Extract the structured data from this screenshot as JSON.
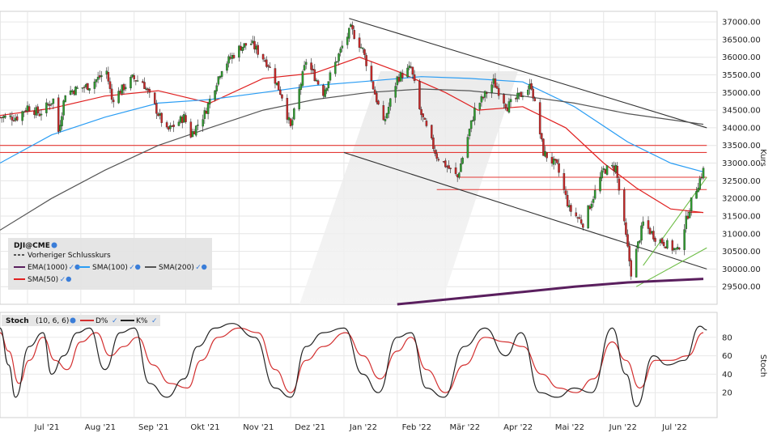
{
  "chart_data": [
    {
      "type": "candlestick",
      "legend": {
        "symbol": "DJI@CME",
        "entries": [
          {
            "name": "Vorheriger Schlusskurs",
            "color": "#555555",
            "style": "dashed"
          },
          {
            "name": "EMA(1000)",
            "color": "#5a1f5e"
          },
          {
            "name": "SMA(100)",
            "color": "#2a9df4"
          },
          {
            "name": "SMA(200)",
            "color": "#555555"
          },
          {
            "name": "SMA(50)",
            "color": "#e02020"
          }
        ]
      },
      "ylabel": "Kurs",
      "ylim": [
        29000,
        37300
      ],
      "yticks": [
        "37000.00",
        "36500.00",
        "36000.00",
        "35500.00",
        "35000.00",
        "34500.00",
        "34000.00",
        "33500.00",
        "33000.00",
        "32500.00",
        "32000.00",
        "31500.00",
        "31000.00",
        "30500.00",
        "30000.00",
        "29500.00"
      ],
      "xticks": [
        "Jul '21",
        "Aug '21",
        "Sep '21",
        "Okt '21",
        "Nov '21",
        "Dez '21",
        "Jan '22",
        "Feb '22",
        "Mär '22",
        "Apr '22",
        "Mai '22",
        "Jun '22",
        "Jul '22"
      ],
      "xtick_dates": [
        "2021-07-01",
        "2021-08-01",
        "2021-09-01",
        "2021-10-01",
        "2021-11-01",
        "2021-12-01",
        "2022-01-01",
        "2022-02-01",
        "2022-03-01",
        "2022-04-01",
        "2022-05-01",
        "2022-06-01",
        "2022-07-01"
      ],
      "colors": {
        "up": "#2e9b2e",
        "down": "#c62828",
        "resistance": "#e53935",
        "support": "#6dbd45",
        "channel": "#333333"
      },
      "closes": [
        [
          "2021-06-15",
          34300
        ],
        [
          "2021-06-25",
          34300
        ],
        [
          "2021-07-01",
          34600
        ],
        [
          "2021-07-08",
          34400
        ],
        [
          "2021-07-16",
          34800
        ],
        [
          "2021-07-19",
          33900
        ],
        [
          "2021-07-23",
          35000
        ],
        [
          "2021-08-06",
          35200
        ],
        [
          "2021-08-16",
          35600
        ],
        [
          "2021-08-19",
          34800
        ],
        [
          "2021-08-31",
          35400
        ],
        [
          "2021-09-06",
          35300
        ],
        [
          "2021-09-20",
          33900
        ],
        [
          "2021-09-30",
          34300
        ],
        [
          "2021-10-04",
          33800
        ],
        [
          "2021-10-12",
          34400
        ],
        [
          "2021-10-22",
          35700
        ],
        [
          "2021-11-02",
          36300
        ],
        [
          "2021-11-08",
          36400
        ],
        [
          "2021-11-18",
          35800
        ],
        [
          "2021-11-26",
          34900
        ],
        [
          "2021-12-01",
          34000
        ],
        [
          "2021-12-10",
          35900
        ],
        [
          "2021-12-20",
          35000
        ],
        [
          "2021-12-31",
          36300
        ],
        [
          "2022-01-05",
          36800
        ],
        [
          "2022-01-12",
          36200
        ],
        [
          "2022-01-24",
          34100
        ],
        [
          "2022-02-01",
          35400
        ],
        [
          "2022-02-09",
          35700
        ],
        [
          "2022-02-14",
          34500
        ],
        [
          "2022-02-24",
          33200
        ],
        [
          "2022-03-08",
          32600
        ],
        [
          "2022-03-18",
          34500
        ],
        [
          "2022-03-29",
          35300
        ],
        [
          "2022-04-06",
          34600
        ],
        [
          "2022-04-20",
          35200
        ],
        [
          "2022-04-27",
          33300
        ],
        [
          "2022-05-05",
          32900
        ],
        [
          "2022-05-12",
          31700
        ],
        [
          "2022-05-20",
          31300
        ],
        [
          "2022-06-01",
          32800
        ],
        [
          "2022-06-08",
          32900
        ],
        [
          "2022-06-17",
          29900
        ],
        [
          "2022-06-24",
          31300
        ],
        [
          "2022-07-01",
          30900
        ],
        [
          "2022-07-14",
          30500
        ],
        [
          "2022-07-22",
          31900
        ],
        [
          "2022-07-29",
          32800
        ]
      ],
      "series": [
        {
          "name": "SMA(50)",
          "values": [
            [
              "2021-06-15",
              34350
            ],
            [
              "2021-07-15",
              34550
            ],
            [
              "2021-08-15",
              34900
            ],
            [
              "2021-09-15",
              35050
            ],
            [
              "2021-10-15",
              34700
            ],
            [
              "2021-11-15",
              35400
            ],
            [
              "2021-12-15",
              35550
            ],
            [
              "2022-01-10",
              36000
            ],
            [
              "2022-02-01",
              35600
            ],
            [
              "2022-03-01",
              35000
            ],
            [
              "2022-03-20",
              34500
            ],
            [
              "2022-04-15",
              34600
            ],
            [
              "2022-05-10",
              34000
            ],
            [
              "2022-06-01",
              33000
            ],
            [
              "2022-06-20",
              32300
            ],
            [
              "2022-07-10",
              31700
            ],
            [
              "2022-07-29",
              31600
            ]
          ]
        },
        {
          "name": "SMA(100)",
          "values": [
            [
              "2021-06-15",
              33000
            ],
            [
              "2021-07-15",
              33800
            ],
            [
              "2021-08-15",
              34300
            ],
            [
              "2021-09-15",
              34700
            ],
            [
              "2021-10-15",
              34800
            ],
            [
              "2021-11-15",
              35000
            ],
            [
              "2021-12-15",
              35200
            ],
            [
              "2022-01-10",
              35300
            ],
            [
              "2022-02-15",
              35450
            ],
            [
              "2022-03-15",
              35400
            ],
            [
              "2022-04-15",
              35300
            ],
            [
              "2022-05-15",
              34600
            ],
            [
              "2022-06-15",
              33600
            ],
            [
              "2022-07-10",
              33000
            ],
            [
              "2022-07-29",
              32750
            ]
          ]
        },
        {
          "name": "SMA(200)",
          "values": [
            [
              "2021-06-15",
              31100
            ],
            [
              "2021-07-15",
              32000
            ],
            [
              "2021-08-15",
              32800
            ],
            [
              "2021-09-15",
              33500
            ],
            [
              "2021-10-15",
              34000
            ],
            [
              "2021-11-15",
              34500
            ],
            [
              "2021-12-15",
              34800
            ],
            [
              "2022-01-15",
              35000
            ],
            [
              "2022-02-15",
              35100
            ],
            [
              "2022-03-15",
              35050
            ],
            [
              "2022-04-15",
              34900
            ],
            [
              "2022-05-15",
              34700
            ],
            [
              "2022-06-15",
              34400
            ],
            [
              "2022-07-29",
              34100
            ]
          ]
        },
        {
          "name": "EMA(1000)",
          "values": [
            [
              "2022-02-01",
              29000
            ],
            [
              "2022-03-15",
              29200
            ],
            [
              "2022-04-15",
              29350
            ],
            [
              "2022-05-15",
              29500
            ],
            [
              "2022-06-15",
              29620
            ],
            [
              "2022-07-29",
              29720
            ]
          ]
        }
      ],
      "trendlines": {
        "channel_upper": [
          [
            "2022-01-04",
            37100
          ],
          [
            "2022-07-31",
            34000
          ]
        ],
        "channel_lower": [
          [
            "2022-01-01",
            33300
          ],
          [
            "2022-07-31",
            30000
          ]
        ],
        "support_upper": [
          [
            "2022-06-24",
            30100
          ],
          [
            "2022-07-31",
            32600
          ]
        ],
        "support_lower": [
          [
            "2022-06-20",
            29500
          ],
          [
            "2022-07-31",
            30600
          ]
        ],
        "resistance": [
          {
            "y": 33500,
            "from": "2021-06-15",
            "to": "2022-07-31"
          },
          {
            "y": 33300,
            "from": "2021-06-15",
            "to": "2022-07-31"
          },
          {
            "y": 32600,
            "from": "2022-03-08",
            "to": "2022-07-31"
          },
          {
            "y": 32250,
            "from": "2022-02-24",
            "to": "2022-07-31"
          },
          {
            "y": 31600,
            "from": "2022-07-20",
            "to": "2022-07-29"
          }
        ]
      }
    },
    {
      "type": "line",
      "title": "Stoch",
      "params": "(10, 6, 6)",
      "ylabel": "Stoch",
      "ylim": [
        0,
        100
      ],
      "yticks": [
        "80",
        "60",
        "40",
        "20"
      ],
      "series": [
        {
          "name": "D%",
          "color": "#d32f2f",
          "values": [
            [
              "2021-06-15",
              85
            ],
            [
              "2021-06-20",
              65
            ],
            [
              "2021-06-26",
              30
            ],
            [
              "2021-07-02",
              55
            ],
            [
              "2021-07-10",
              80
            ],
            [
              "2021-07-17",
              55
            ],
            [
              "2021-07-24",
              45
            ],
            [
              "2021-08-01",
              75
            ],
            [
              "2021-08-10",
              85
            ],
            [
              "2021-08-18",
              60
            ],
            [
              "2021-08-26",
              70
            ],
            [
              "2021-09-03",
              80
            ],
            [
              "2021-09-12",
              50
            ],
            [
              "2021-09-22",
              30
            ],
            [
              "2021-10-02",
              25
            ],
            [
              "2021-10-10",
              55
            ],
            [
              "2021-10-20",
              80
            ],
            [
              "2021-11-01",
              90
            ],
            [
              "2021-11-12",
              85
            ],
            [
              "2021-11-22",
              45
            ],
            [
              "2021-12-01",
              20
            ],
            [
              "2021-12-10",
              55
            ],
            [
              "2021-12-20",
              70
            ],
            [
              "2022-01-02",
              85
            ],
            [
              "2022-01-12",
              60
            ],
            [
              "2022-01-22",
              35
            ],
            [
              "2022-02-01",
              65
            ],
            [
              "2022-02-09",
              80
            ],
            [
              "2022-02-18",
              45
            ],
            [
              "2022-03-01",
              20
            ],
            [
              "2022-03-12",
              50
            ],
            [
              "2022-03-24",
              80
            ],
            [
              "2022-04-05",
              75
            ],
            [
              "2022-04-15",
              70
            ],
            [
              "2022-04-26",
              40
            ],
            [
              "2022-05-06",
              25
            ],
            [
              "2022-05-16",
              20
            ],
            [
              "2022-05-26",
              35
            ],
            [
              "2022-06-06",
              75
            ],
            [
              "2022-06-14",
              55
            ],
            [
              "2022-06-22",
              25
            ],
            [
              "2022-07-01",
              55
            ],
            [
              "2022-07-10",
              55
            ],
            [
              "2022-07-20",
              60
            ],
            [
              "2022-07-29",
              85
            ]
          ]
        },
        {
          "name": "K%",
          "color": "#222222",
          "values": [
            [
              "2021-06-15",
              90
            ],
            [
              "2021-06-20",
              50
            ],
            [
              "2021-06-24",
              15
            ],
            [
              "2021-07-02",
              70
            ],
            [
              "2021-07-10",
              85
            ],
            [
              "2021-07-15",
              40
            ],
            [
              "2021-07-22",
              60
            ],
            [
              "2021-07-30",
              85
            ],
            [
              "2021-08-06",
              90
            ],
            [
              "2021-08-15",
              45
            ],
            [
              "2021-08-24",
              85
            ],
            [
              "2021-09-01",
              90
            ],
            [
              "2021-09-10",
              30
            ],
            [
              "2021-09-20",
              15
            ],
            [
              "2021-09-30",
              35
            ],
            [
              "2021-10-08",
              70
            ],
            [
              "2021-10-18",
              90
            ],
            [
              "2021-10-28",
              95
            ],
            [
              "2021-11-10",
              80
            ],
            [
              "2021-11-22",
              25
            ],
            [
              "2021-12-01",
              15
            ],
            [
              "2021-12-10",
              70
            ],
            [
              "2021-12-20",
              85
            ],
            [
              "2022-01-01",
              90
            ],
            [
              "2022-01-12",
              40
            ],
            [
              "2022-01-21",
              20
            ],
            [
              "2022-02-01",
              80
            ],
            [
              "2022-02-09",
              85
            ],
            [
              "2022-02-18",
              25
            ],
            [
              "2022-02-28",
              15
            ],
            [
              "2022-03-12",
              70
            ],
            [
              "2022-03-24",
              90
            ],
            [
              "2022-04-05",
              60
            ],
            [
              "2022-04-14",
              85
            ],
            [
              "2022-04-25",
              20
            ],
            [
              "2022-05-05",
              15
            ],
            [
              "2022-05-15",
              25
            ],
            [
              "2022-05-25",
              20
            ],
            [
              "2022-06-06",
              90
            ],
            [
              "2022-06-14",
              40
            ],
            [
              "2022-06-20",
              5
            ],
            [
              "2022-06-30",
              60
            ],
            [
              "2022-07-08",
              50
            ],
            [
              "2022-07-18",
              55
            ],
            [
              "2022-07-27",
              92
            ],
            [
              "2022-07-31",
              88
            ]
          ]
        }
      ]
    }
  ]
}
